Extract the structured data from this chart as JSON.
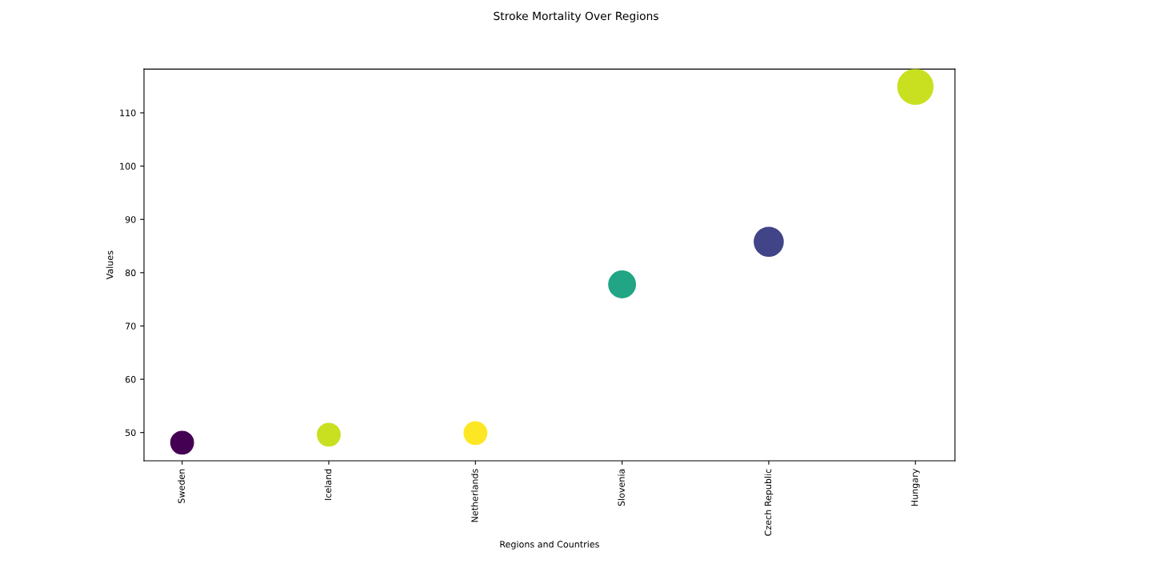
{
  "chart_data": {
    "type": "bubble",
    "title": "Stroke Mortality Over Regions",
    "xlabel": "Regions and Countries",
    "ylabel": "Values",
    "categories": [
      "Sweden",
      "Iceland",
      "Netherlands",
      "Slovenia",
      "Czech Republic",
      "Hungary"
    ],
    "values": [
      48.1,
      49.6,
      49.9,
      77.8,
      85.8,
      114.9
    ],
    "sizes": [
      0.42,
      0.42,
      0.42,
      0.58,
      0.68,
      1
    ],
    "colors": [
      "#440154",
      "#c8e020",
      "#fde725",
      "#21a585",
      "#414487",
      "#c8e020"
    ],
    "ylim": [
      44.7,
      118.2
    ],
    "yticks": [
      50,
      60,
      70,
      80,
      90,
      100,
      110
    ],
    "grid": false
  }
}
